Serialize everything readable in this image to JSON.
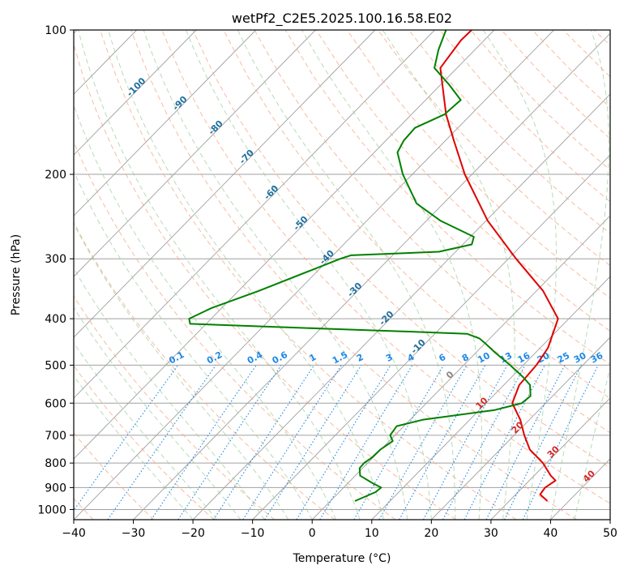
{
  "chart_data": {
    "type": "line",
    "title": "wetPf2_C2E5.2025.100.16.58.E02",
    "xlabel": "Temperature (°C)",
    "ylabel": "Pressure (hPa)",
    "xlim": [
      -40,
      50
    ],
    "ylim": [
      1050,
      100
    ],
    "y_scale": "log",
    "grid": true,
    "x_ticks": [
      -40,
      -30,
      -20,
      -10,
      0,
      10,
      20,
      30,
      40,
      50
    ],
    "y_ticks": [
      100,
      200,
      300,
      400,
      500,
      600,
      700,
      800,
      900,
      1000
    ],
    "skew": true,
    "colors": {
      "temperature": "#e00000",
      "dewpoint": "#008000",
      "isotherm": "#a0a0a0",
      "dry_adiabat": "#f4a582",
      "moist_adiabat": "#99cc99",
      "mixing_ratio": "#1e88e5",
      "hgz_label": "#1f6f9f",
      "isotherm_label": "#1f6f9f"
    },
    "series": [
      {
        "kind": "temperature",
        "pressure": [
          960,
          930,
          900,
          870,
          850,
          800,
          750,
          700,
          650,
          600,
          550,
          500,
          460,
          440,
          400,
          350,
          300,
          250,
          200,
          170,
          150,
          120,
          105,
          100
        ],
        "values": [
          36.4,
          34.1,
          33.8,
          34.4,
          32.8,
          29.4,
          25.0,
          21.7,
          18.5,
          14.4,
          12.6,
          12.2,
          11.3,
          10.3,
          8.2,
          1.1,
          -8.7,
          -19.7,
          -31.2,
          -38.6,
          -44.2,
          -52.8,
          -53.9,
          -53.8
        ]
      },
      {
        "kind": "dewpoint",
        "pressure": [
          960,
          920,
          900,
          880,
          850,
          820,
          800,
          780,
          750,
          720,
          700,
          670,
          650,
          620,
          600,
          580,
          550,
          530,
          500,
          470,
          450,
          440,
          430,
          425,
          420,
          415,
          410,
          400,
          380,
          350,
          300,
          295,
          290,
          280,
          270,
          250,
          230,
          200,
          180,
          170,
          160,
          150,
          140,
          130,
          120,
          110,
          100
        ],
        "values": [
          4.1,
          6.1,
          6.3,
          4.0,
          0.8,
          -0.5,
          -0.6,
          -0.2,
          -0.1,
          0.6,
          -0.8,
          -1.2,
          2.1,
          12.6,
          16.0,
          16.3,
          14.4,
          12.0,
          7.8,
          3.1,
          0.0,
          -1.7,
          -4.6,
          -15.9,
          -28.5,
          -40.3,
          -52.7,
          -53.7,
          -51.7,
          -46.6,
          -38.2,
          -37.0,
          -22.8,
          -18.5,
          -19.4,
          -27.6,
          -34.5,
          -41.6,
          -46.1,
          -47.0,
          -47.2,
          -44.5,
          -44.1,
          -48.6,
          -53.8,
          -56.1,
          -58.1
        ]
      }
    ],
    "isotherm_labels": [
      "-100",
      "-90",
      "-80",
      "-70",
      "-60",
      "-50",
      "-40",
      "-30",
      "-20",
      "-10",
      "0",
      "10",
      "20",
      "30",
      "40"
    ],
    "mixing_ratio_labels": [
      "0.1",
      "0.2",
      "0.4",
      "0.6",
      "1",
      "1.5",
      "2",
      "3",
      "4",
      "6",
      "8",
      "10",
      "13",
      "16",
      "20",
      "25",
      "30",
      "36"
    ]
  }
}
